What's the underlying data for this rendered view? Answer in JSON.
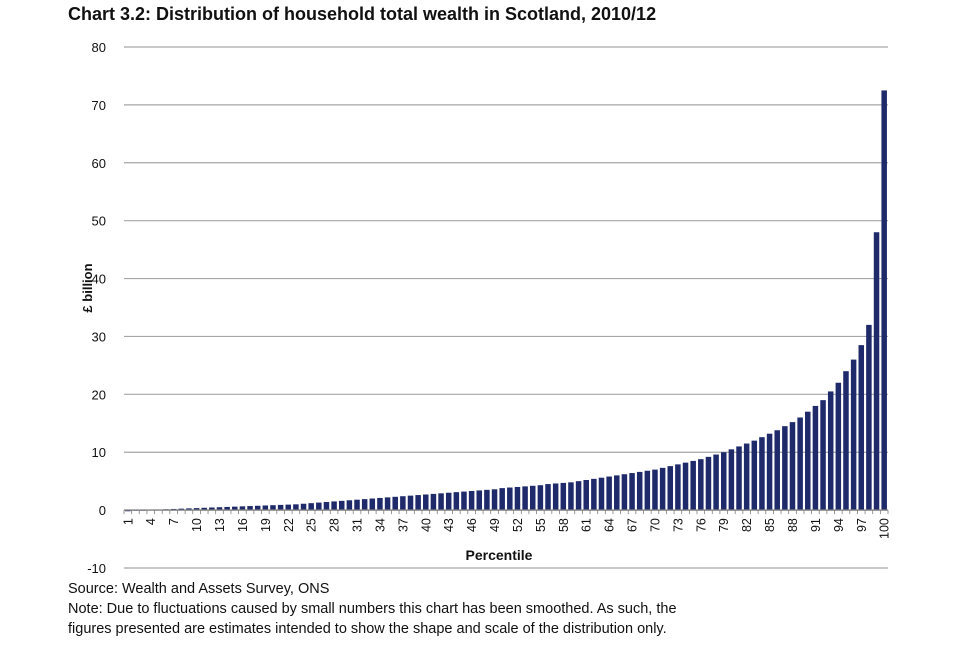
{
  "header": {
    "title": "Chart 3.2: Distribution of household total wealth in Scotland, 2010/12"
  },
  "footer": {
    "source": "Source: Wealth and Assets Survey, ONS",
    "note_line1": "Note: Due to fluctuations caused by small numbers this chart has been smoothed. As such, the",
    "note_line2": "figures presented are estimates intended to show the shape and scale of the distribution only."
  },
  "colors": {
    "bar": "#1f2a6b",
    "grid": "#a6a6a6",
    "axis": "#7f7f7f"
  },
  "chart_data": {
    "type": "bar",
    "title": "Chart 3.2: Distribution of household total wealth in Scotland, 2010/12",
    "xlabel": "Percentile",
    "ylabel": "£ billion",
    "ylim": [
      -10,
      80
    ],
    "yticks": [
      -10,
      0,
      10,
      20,
      30,
      40,
      50,
      60,
      70,
      80
    ],
    "grid": true,
    "legend": "none",
    "categories": [
      1,
      2,
      3,
      4,
      5,
      6,
      7,
      8,
      9,
      10,
      11,
      12,
      13,
      14,
      15,
      16,
      17,
      18,
      19,
      20,
      21,
      22,
      23,
      24,
      25,
      26,
      27,
      28,
      29,
      30,
      31,
      32,
      33,
      34,
      35,
      36,
      37,
      38,
      39,
      40,
      41,
      42,
      43,
      44,
      45,
      46,
      47,
      48,
      49,
      50,
      51,
      52,
      53,
      54,
      55,
      56,
      57,
      58,
      59,
      60,
      61,
      62,
      63,
      64,
      65,
      66,
      67,
      68,
      69,
      70,
      71,
      72,
      73,
      74,
      75,
      76,
      77,
      78,
      79,
      80,
      81,
      82,
      83,
      84,
      85,
      86,
      87,
      88,
      89,
      90,
      91,
      92,
      93,
      94,
      95,
      96,
      97,
      98,
      99,
      100
    ],
    "tick_labels": [
      "1",
      "4",
      "7",
      "10",
      "13",
      "16",
      "19",
      "22",
      "25",
      "28",
      "31",
      "34",
      "37",
      "40",
      "43",
      "46",
      "49",
      "52",
      "55",
      "58",
      "61",
      "64",
      "67",
      "70",
      "73",
      "76",
      "79",
      "82",
      "85",
      "88",
      "91",
      "94",
      "97",
      "100"
    ],
    "values": [
      -0.2,
      -0.1,
      0,
      0.05,
      0.1,
      0.15,
      0.2,
      0.25,
      0.3,
      0.35,
      0.4,
      0.45,
      0.5,
      0.55,
      0.6,
      0.65,
      0.7,
      0.75,
      0.8,
      0.85,
      0.9,
      0.95,
      1.0,
      1.1,
      1.2,
      1.3,
      1.4,
      1.5,
      1.6,
      1.7,
      1.8,
      1.9,
      2.0,
      2.1,
      2.2,
      2.3,
      2.4,
      2.5,
      2.6,
      2.7,
      2.8,
      2.9,
      3.0,
      3.1,
      3.2,
      3.3,
      3.4,
      3.5,
      3.6,
      3.8,
      3.9,
      4.0,
      4.1,
      4.2,
      4.3,
      4.5,
      4.6,
      4.7,
      4.8,
      5.0,
      5.2,
      5.4,
      5.6,
      5.8,
      6.0,
      6.2,
      6.4,
      6.6,
      6.8,
      7.0,
      7.3,
      7.6,
      7.9,
      8.2,
      8.5,
      8.8,
      9.2,
      9.6,
      10.0,
      10.5,
      11.0,
      11.5,
      12.0,
      12.6,
      13.2,
      13.8,
      14.5,
      15.2,
      16.0,
      17.0,
      18.0,
      19.0,
      20.5,
      22.0,
      24.0,
      26.0,
      28.5,
      32.0,
      48.0,
      72.5
    ]
  }
}
